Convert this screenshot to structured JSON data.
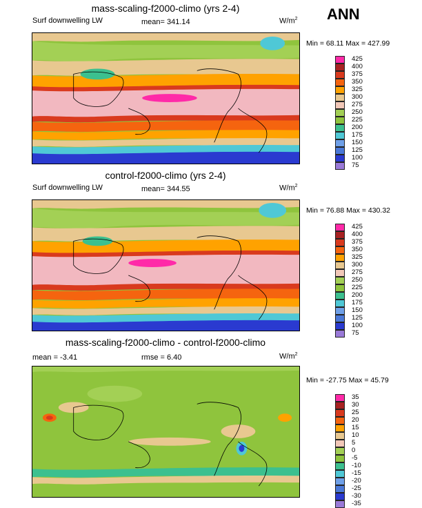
{
  "season": "ANN",
  "panels": [
    {
      "title": "mass-scaling-f2000-climo (yrs 2-4)",
      "left": "Surf downwelling LW",
      "mid": "mean= 341.14",
      "unit": "W/m",
      "unit_sup": "2",
      "minmax": "Min =  68.11 Max = 427.99"
    },
    {
      "title": "control-f2000-climo (yrs 2-4)",
      "left": "Surf downwelling LW",
      "mid": "mean= 344.55",
      "unit": "W/m",
      "unit_sup": "2",
      "minmax": "Min =  76.88 Max = 430.32"
    },
    {
      "title": "mass-scaling-f2000-climo - control-f2000-climo",
      "left": "mean =  -3.41",
      "mid": "rmse =   6.40",
      "unit": "W/m",
      "unit_sup": "2",
      "minmax": "Min = -27.75 Max =  45.79"
    }
  ],
  "colorbars": {
    "abs": {
      "labels": [
        "425",
        "400",
        "375",
        "350",
        "325",
        "300",
        "275",
        "250",
        "225",
        "200",
        "175",
        "150",
        "125",
        "100",
        "75"
      ],
      "colors": [
        "#ff2aa8",
        "#a82222",
        "#d93a1e",
        "#f5640f",
        "#ffa200",
        "#e8c890",
        "#f2c8b8",
        "#a3d055",
        "#8fc43d",
        "#3cc08f",
        "#4fc8d6",
        "#6fa0e8",
        "#4a78d8",
        "#2a3ad0",
        "#9a7ad8"
      ]
    },
    "diff": {
      "labels": [
        "35",
        "30",
        "25",
        "20",
        "15",
        "10",
        "5",
        "0",
        "-5",
        "-10",
        "-15",
        "-20",
        "-25",
        "-30",
        "-35"
      ],
      "colors": [
        "#ff2aa8",
        "#a82222",
        "#d93a1e",
        "#f5640f",
        "#ffa200",
        "#e8c890",
        "#f2c8b8",
        "#a3d055",
        "#8fc43d",
        "#3cc08f",
        "#4fc8d6",
        "#6fa0e8",
        "#4a78d8",
        "#2a3ad0",
        "#9a7ad8"
      ]
    }
  },
  "fill_colors": {
    "abs_bands": [
      "#4a78d8",
      "#2a3ad0",
      "#4fc8d6",
      "#3cc08f",
      "#8fc43d",
      "#a3d055",
      "#e8c890",
      "#ffa200",
      "#f5640f",
      "#d93a1e",
      "#a82222",
      "#f2b8c0",
      "#ff2aa8"
    ],
    "diff_background": "#8fc43d"
  }
}
